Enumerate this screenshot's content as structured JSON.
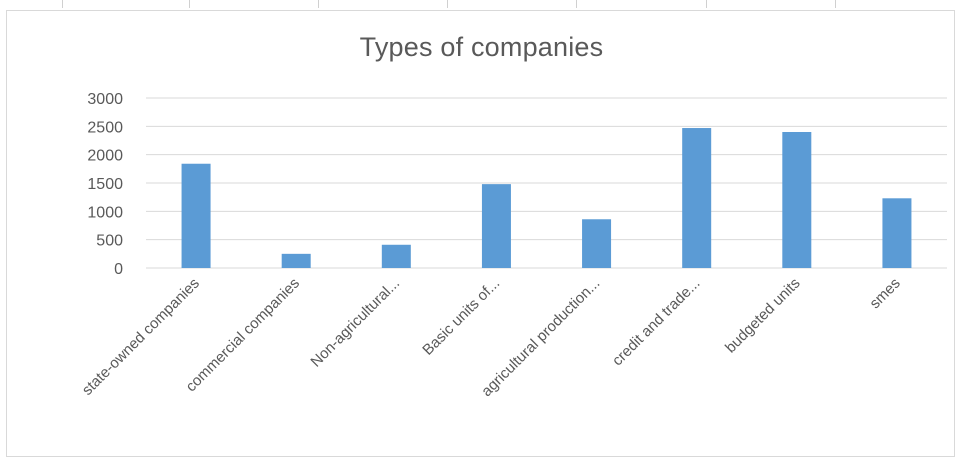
{
  "chart_data": {
    "type": "bar",
    "title": "Types of companies",
    "xlabel": "",
    "ylabel": "",
    "categories": [
      "state-owned companies",
      "commercial companies",
      "Non-agricultural...",
      "Basic units of...",
      "agricultural production...",
      "credit and trade...",
      "budgeted units",
      "smes"
    ],
    "values": [
      1840,
      250,
      410,
      1480,
      860,
      2470,
      2400,
      1230
    ],
    "ylim": [
      0,
      3000
    ],
    "yticks": [
      "0",
      "500",
      "1000",
      "1500",
      "2000",
      "2500",
      "3000"
    ],
    "grid": true,
    "legend": "none",
    "colors": {
      "bar": "#5b9bd5",
      "grid": "#d9d9d9",
      "text": "#595959"
    }
  }
}
